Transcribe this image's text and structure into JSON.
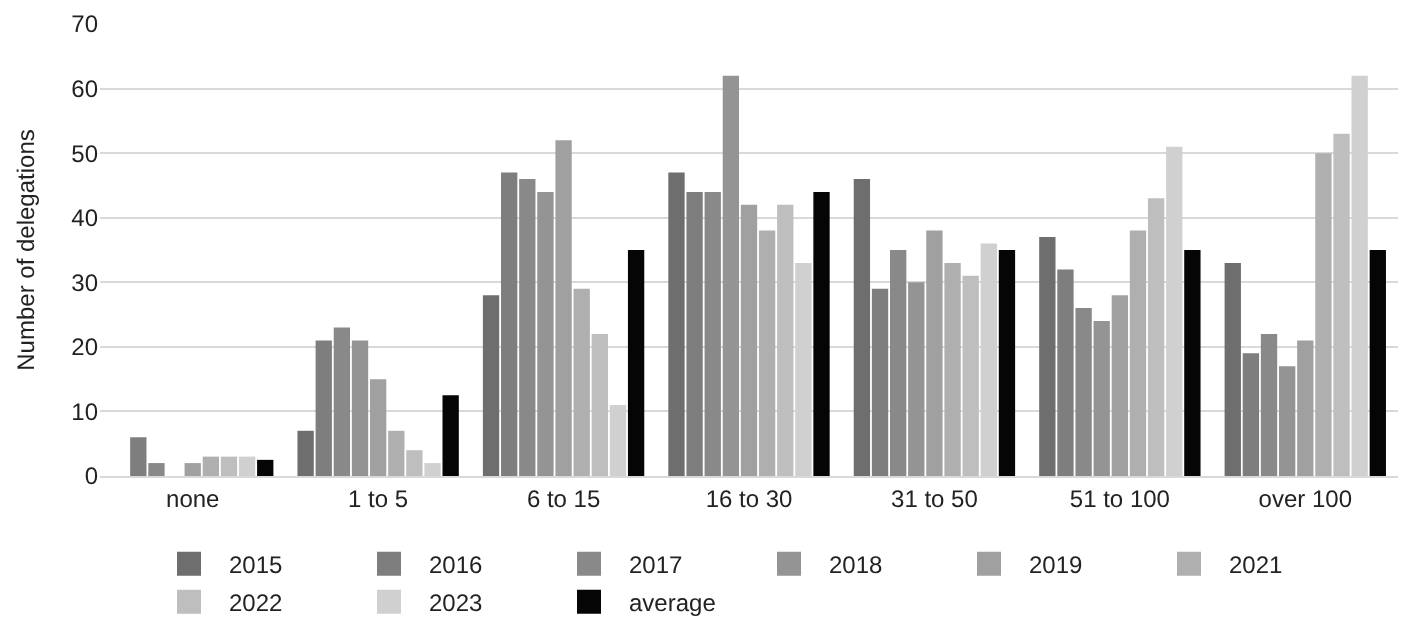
{
  "chart_data": {
    "type": "bar",
    "ylabel": "Number of delegations",
    "categories": [
      "none",
      "1 to 5",
      "6 to 15",
      "16 to 30",
      "31 to 50",
      "51 to 100",
      "over 100"
    ],
    "series": [
      {
        "name": "2015",
        "color": "#6e6e6e",
        "values": [
          0,
          7,
          28,
          47,
          46,
          37,
          33
        ]
      },
      {
        "name": "2016",
        "color": "#7e7e7e",
        "values": [
          6,
          21,
          47,
          44,
          29,
          32,
          19
        ]
      },
      {
        "name": "2017",
        "color": "#898989",
        "values": [
          2,
          23,
          46,
          44,
          35,
          26,
          22
        ]
      },
      {
        "name": "2018",
        "color": "#949494",
        "values": [
          0,
          21,
          44,
          62,
          30,
          24,
          17
        ]
      },
      {
        "name": "2019",
        "color": "#a0a0a0",
        "values": [
          2,
          15,
          52,
          42,
          38,
          28,
          21
        ]
      },
      {
        "name": "2021",
        "color": "#afafaf",
        "values": [
          3,
          7,
          29,
          38,
          33,
          38,
          50
        ]
      },
      {
        "name": "2022",
        "color": "#bebebe",
        "values": [
          3,
          4,
          22,
          42,
          31,
          43,
          53
        ]
      },
      {
        "name": "2023",
        "color": "#d0d0d0",
        "values": [
          3,
          2,
          11,
          33,
          36,
          51,
          62
        ]
      },
      {
        "name": "average",
        "color": "#050505",
        "values": [
          2.5,
          12.5,
          35,
          44,
          35,
          35,
          35
        ]
      }
    ],
    "ylim": [
      0,
      70
    ],
    "yticks": [
      0,
      10,
      20,
      30,
      40,
      50,
      60,
      70
    ],
    "grid": "y",
    "legend": "bottom"
  }
}
